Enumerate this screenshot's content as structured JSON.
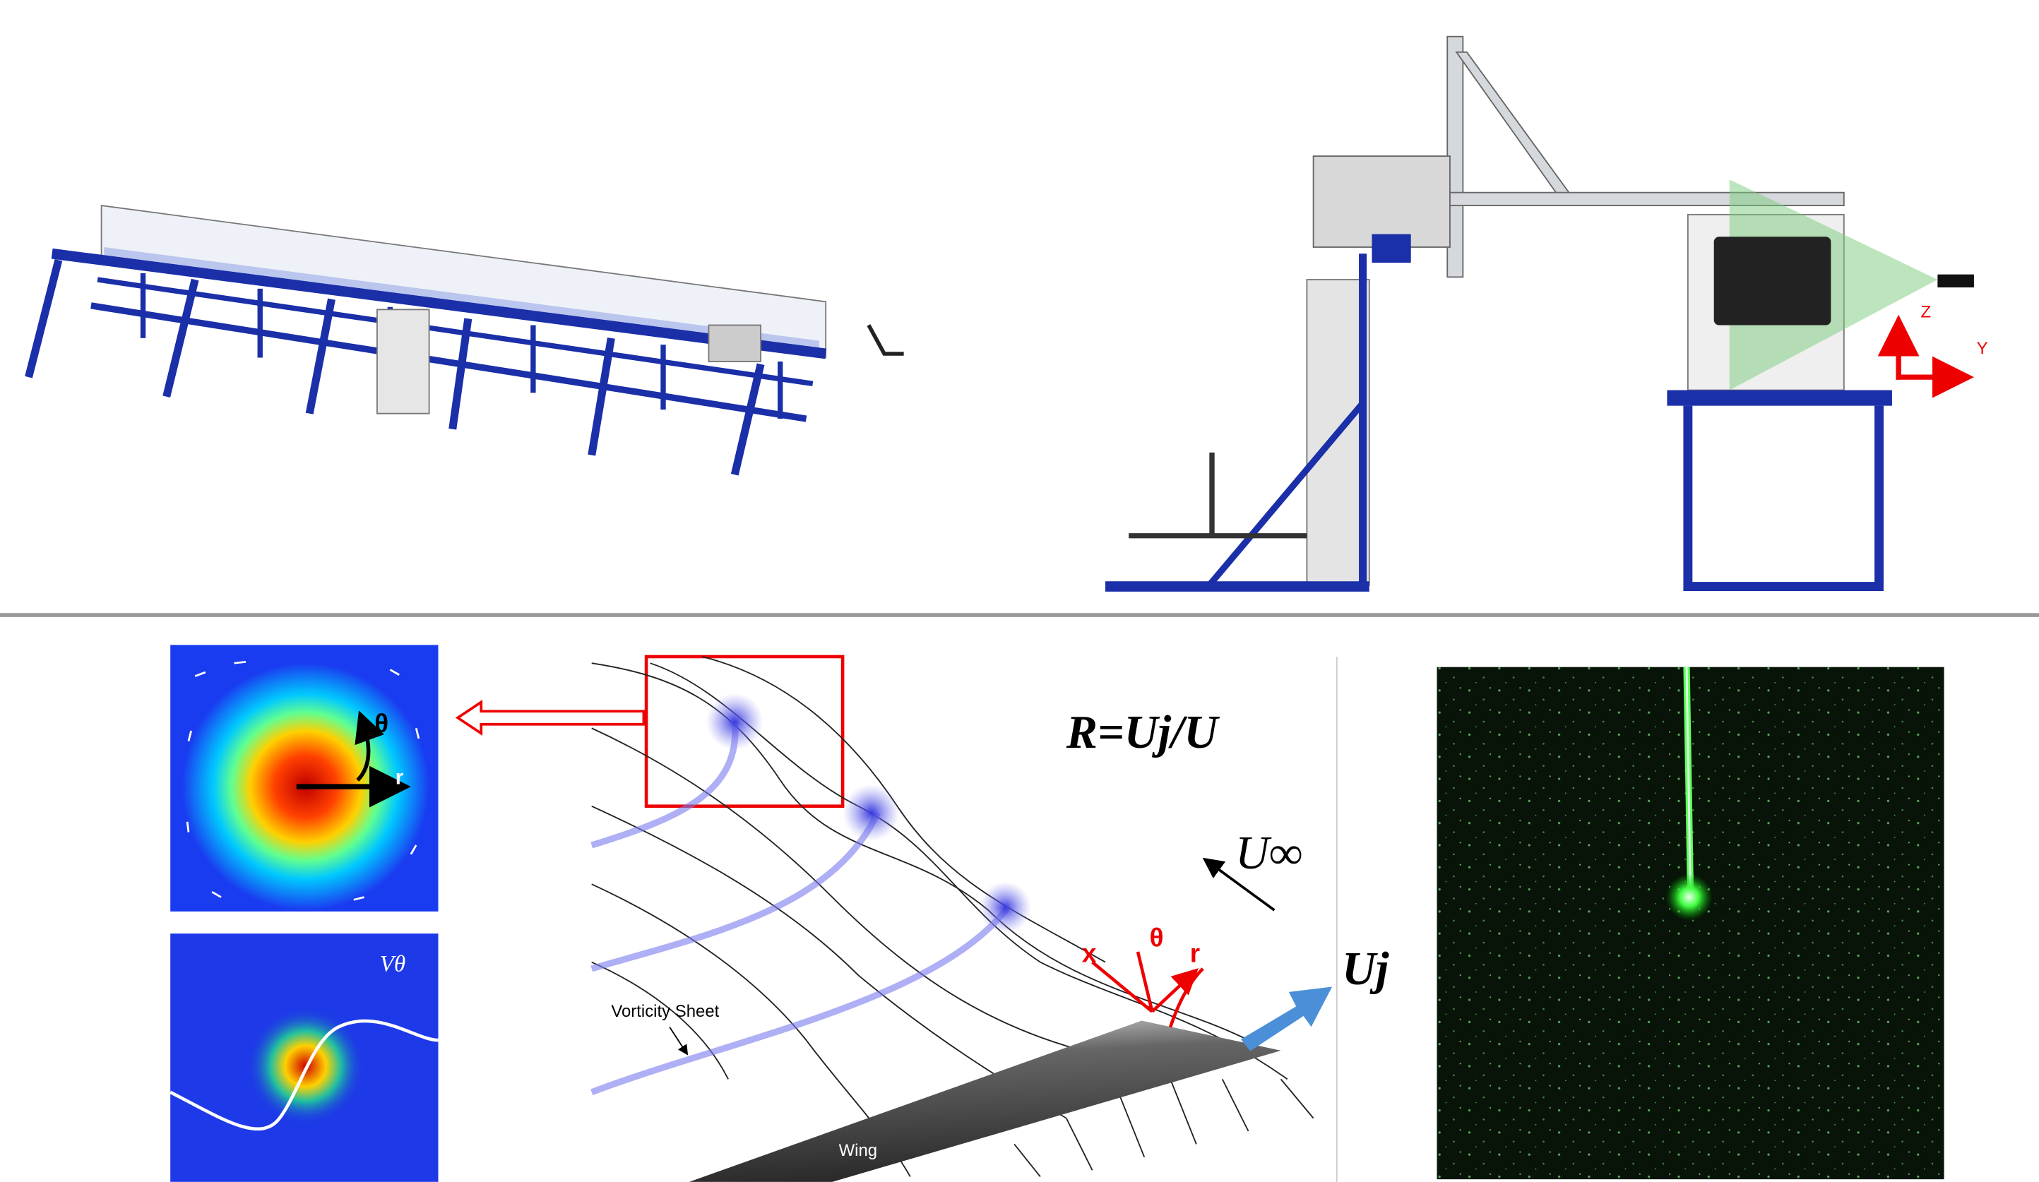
{
  "side_view": {
    "z_axis": "Z",
    "y_axis": "Y"
  },
  "vortex_panel": {
    "theta": "θ",
    "r": "r"
  },
  "velocity_panel": {
    "label": "Vθ"
  },
  "schematic": {
    "vorticity_sheet": "Vorticity Sheet",
    "wing": "Wing",
    "ratio": "R=Uj/U",
    "freestream": "U∞",
    "x": "x",
    "theta": "θ",
    "r": "r",
    "jet": "Uj"
  }
}
